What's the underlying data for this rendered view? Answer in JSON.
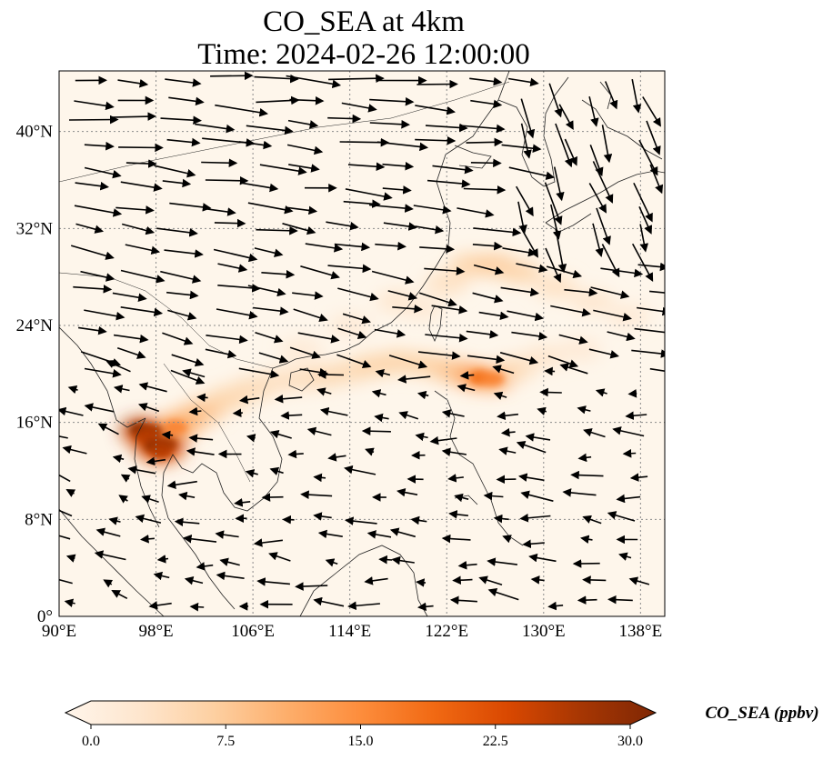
{
  "title_line1": "CO_SEA at 4km",
  "title_line2": "Time: 2024-02-26 12:00:00",
  "map": {
    "lon_range": [
      90,
      140
    ],
    "lat_range": [
      0,
      45
    ],
    "lon_ticks": [
      {
        "value": 90,
        "label": "90°E"
      },
      {
        "value": 98,
        "label": "98°E"
      },
      {
        "value": 106,
        "label": "106°E"
      },
      {
        "value": 114,
        "label": "114°E"
      },
      {
        "value": 122,
        "label": "122°E"
      },
      {
        "value": 130,
        "label": "130°E"
      },
      {
        "value": 138,
        "label": "138°E"
      }
    ],
    "lat_ticks": [
      {
        "value": 0,
        "label": "0°"
      },
      {
        "value": 8,
        "label": "8°N"
      },
      {
        "value": 16,
        "label": "16°N"
      },
      {
        "value": 24,
        "label": "24°N"
      },
      {
        "value": 32,
        "label": "32°N"
      },
      {
        "value": 40,
        "label": "40°N"
      }
    ],
    "gridlines": true,
    "plumes": [
      {
        "lon": 96.8,
        "lat": 15.4,
        "value": 27
      },
      {
        "lon": 97.6,
        "lat": 15.3,
        "value": 24
      },
      {
        "lon": 97.2,
        "lat": 14.9,
        "value": 22
      },
      {
        "lon": 98.0,
        "lat": 14.0,
        "value": 26
      },
      {
        "lon": 98.8,
        "lat": 14.2,
        "value": 24
      },
      {
        "lon": 98.4,
        "lat": 13.6,
        "value": 22
      },
      {
        "lon": 99.6,
        "lat": 15.6,
        "value": 13
      },
      {
        "lon": 100.6,
        "lat": 16.2,
        "value": 11
      },
      {
        "lon": 102.0,
        "lat": 17.0,
        "value": 9
      },
      {
        "lon": 104.0,
        "lat": 18.0,
        "value": 7
      },
      {
        "lon": 106.0,
        "lat": 18.8,
        "value": 6
      },
      {
        "lon": 108.0,
        "lat": 19.4,
        "value": 5
      },
      {
        "lon": 110.0,
        "lat": 19.6,
        "value": 5
      },
      {
        "lon": 112.0,
        "lat": 19.8,
        "value": 6
      },
      {
        "lon": 114.0,
        "lat": 20.2,
        "value": 6
      },
      {
        "lon": 116.0,
        "lat": 20.7,
        "value": 7
      },
      {
        "lon": 118.0,
        "lat": 21.0,
        "value": 7
      },
      {
        "lon": 120.0,
        "lat": 20.8,
        "value": 7
      },
      {
        "lon": 122.0,
        "lat": 20.4,
        "value": 8
      },
      {
        "lon": 123.5,
        "lat": 20.0,
        "value": 10
      },
      {
        "lon": 124.8,
        "lat": 19.7,
        "value": 15
      },
      {
        "lon": 125.8,
        "lat": 19.6,
        "value": 13
      },
      {
        "lon": 127.5,
        "lat": 20.4,
        "value": 6
      },
      {
        "lon": 130.0,
        "lat": 21.4,
        "value": 4
      },
      {
        "lon": 133.0,
        "lat": 22.0,
        "value": 3
      },
      {
        "lon": 110.0,
        "lat": 22.0,
        "value": 3
      },
      {
        "lon": 114.0,
        "lat": 24.0,
        "value": 3
      },
      {
        "lon": 118.0,
        "lat": 26.0,
        "value": 4
      },
      {
        "lon": 122.0,
        "lat": 27.5,
        "value": 5
      },
      {
        "lon": 124.0,
        "lat": 29.0,
        "value": 7
      },
      {
        "lon": 126.0,
        "lat": 29.0,
        "value": 8
      },
      {
        "lon": 128.0,
        "lat": 28.4,
        "value": 7
      },
      {
        "lon": 131.0,
        "lat": 27.2,
        "value": 5
      },
      {
        "lon": 134.0,
        "lat": 26.0,
        "value": 4
      },
      {
        "lon": 137.0,
        "lat": 24.8,
        "value": 3
      },
      {
        "lon": 120.0,
        "lat": 25.4,
        "value": 3
      }
    ]
  },
  "colorbar": {
    "label": "CO_SEA (ppbv)",
    "min": 0,
    "max": 30,
    "colors": [
      "#fff5eb",
      "#fee6ce",
      "#fdd0a2",
      "#fdae6b",
      "#fd8d3c",
      "#f16913",
      "#d94801",
      "#a63603",
      "#7f2704"
    ],
    "ticks": [
      {
        "value": 0,
        "label": "0.0"
      },
      {
        "value": 7.5,
        "label": "7.5"
      },
      {
        "value": 15,
        "label": "15.0"
      },
      {
        "value": 22.5,
        "label": "22.5"
      },
      {
        "value": 30,
        "label": "30.0"
      }
    ]
  },
  "colors": {
    "background": "#fef6eb",
    "grid": "#8a8a8a",
    "coast": "#222222",
    "arrow": "#000000"
  }
}
